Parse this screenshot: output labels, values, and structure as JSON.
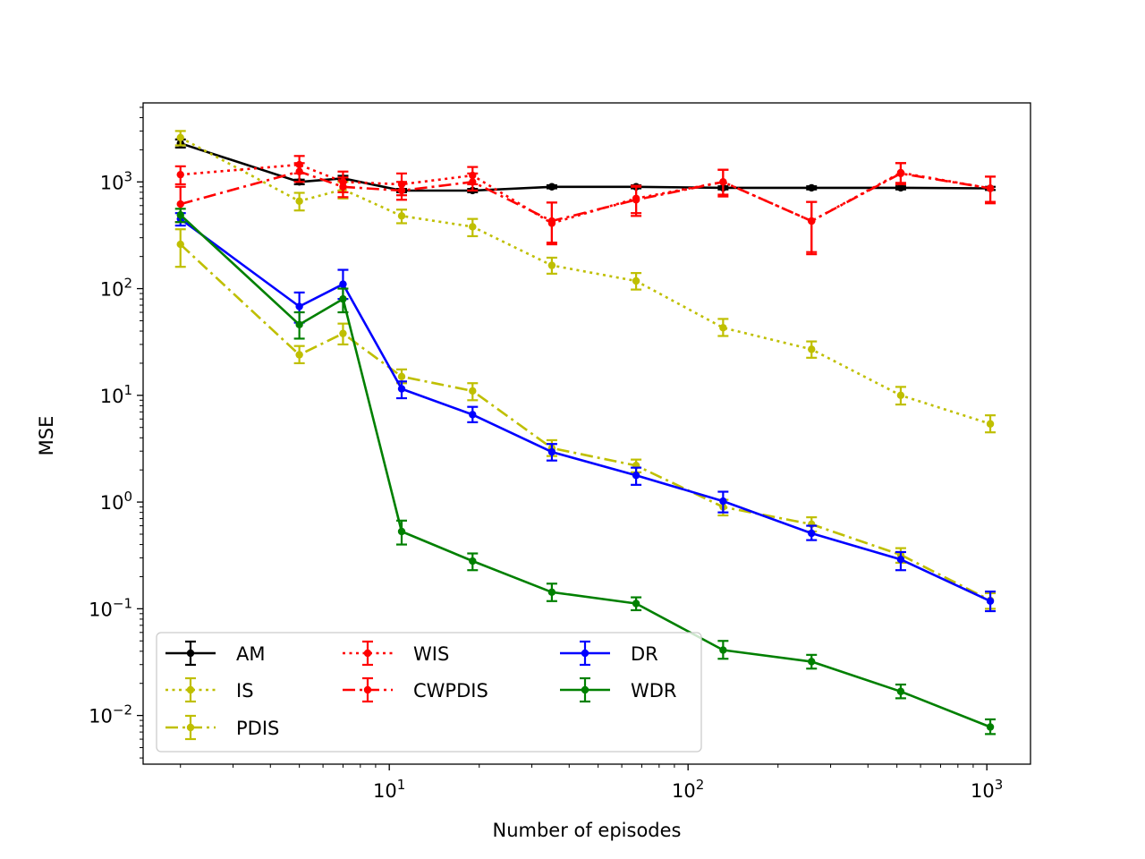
{
  "chart_data": {
    "type": "line",
    "title": "",
    "xlabel": "Number of episodes",
    "ylabel": "MSE",
    "xscale": "log",
    "yscale": "log",
    "xlim": [
      1.5,
      1400
    ],
    "ylim": [
      0.0035,
      5500
    ],
    "x_ticks": [
      {
        "value": 10,
        "base": "10",
        "exp": "1"
      },
      {
        "value": 100,
        "base": "10",
        "exp": "2"
      },
      {
        "value": 1000,
        "base": "10",
        "exp": "3"
      }
    ],
    "y_ticks": [
      {
        "value": 0.01,
        "base": "10",
        "exp": "−2"
      },
      {
        "value": 0.1,
        "base": "10",
        "exp": "−1"
      },
      {
        "value": 1,
        "base": "10",
        "exp": "0"
      },
      {
        "value": 10,
        "base": "10",
        "exp": "1"
      },
      {
        "value": 100,
        "base": "10",
        "exp": "2"
      },
      {
        "value": 1000,
        "base": "10",
        "exp": "3"
      }
    ],
    "grid": false,
    "legend_placement": "lower-left",
    "legend_columns": 3,
    "x": [
      2,
      5,
      7,
      11,
      19,
      35,
      67,
      131,
      259,
      515,
      1027
    ],
    "series": [
      {
        "name": "AM",
        "color": "#000000",
        "dash": "solid",
        "values": [
          2300,
          1000,
          1080,
          830,
          830,
          900,
          900,
          880,
          880,
          880,
          870
        ],
        "err_low": [
          2100,
          950,
          1020,
          800,
          800,
          870,
          870,
          850,
          850,
          850,
          840
        ],
        "err_high": [
          2500,
          1050,
          1140,
          860,
          860,
          930,
          930,
          910,
          910,
          910,
          900
        ]
      },
      {
        "name": "IS",
        "color": "#bfbf00",
        "dash": "dotted",
        "values": [
          2600,
          660,
          850,
          480,
          380,
          165,
          118,
          43,
          27,
          10,
          5.4
        ],
        "err_low": [
          2200,
          540,
          700,
          410,
          310,
          138,
          98,
          36,
          22.5,
          8.2,
          4.5
        ],
        "err_high": [
          3000,
          790,
          1000,
          550,
          450,
          195,
          140,
          52,
          32,
          12,
          6.5
        ]
      },
      {
        "name": "PDIS",
        "color": "#bfbf00",
        "dash": "dashdot",
        "values": [
          260,
          24,
          38,
          15,
          11,
          3.2,
          2.2,
          0.9,
          0.62,
          0.32,
          0.12
        ],
        "err_low": [
          160,
          20,
          30,
          13,
          9,
          2.7,
          1.9,
          0.75,
          0.53,
          0.27,
          0.1
        ],
        "err_high": [
          360,
          29,
          47,
          17.5,
          13,
          3.8,
          2.5,
          1.05,
          0.72,
          0.37,
          0.14
        ]
      },
      {
        "name": "WIS",
        "color": "#ff0000",
        "dash": "dotted",
        "values": [
          1170,
          1450,
          1000,
          950,
          1150,
          410,
          700,
          1000,
          430,
          1220,
          870
        ],
        "err_low": [
          950,
          1200,
          800,
          750,
          950,
          270,
          510,
          760,
          220,
          980,
          650
        ],
        "err_high": [
          1400,
          1750,
          1250,
          1200,
          1380,
          640,
          920,
          1300,
          650,
          1500,
          1120
        ]
      },
      {
        "name": "CWPDIS",
        "color": "#ff0000",
        "dash": "dashdot",
        "values": [
          620,
          1250,
          900,
          830,
          1000,
          430,
          680,
          1000,
          430,
          1200,
          870
        ],
        "err_low": [
          420,
          1000,
          720,
          680,
          830,
          260,
          480,
          730,
          210,
          950,
          630
        ],
        "err_high": [
          900,
          1500,
          1100,
          1000,
          1200,
          640,
          900,
          1300,
          650,
          1500,
          1120
        ]
      },
      {
        "name": "DR",
        "color": "#0000ff",
        "dash": "solid",
        "values": [
          450,
          68,
          110,
          11.5,
          6.6,
          2.95,
          1.78,
          1.02,
          0.51,
          0.29,
          0.118
        ],
        "err_low": [
          390,
          48,
          80,
          9.4,
          5.6,
          2.45,
          1.45,
          0.8,
          0.44,
          0.23,
          0.095
        ],
        "err_high": [
          510,
          92,
          150,
          13.5,
          7.8,
          3.5,
          2.1,
          1.25,
          0.6,
          0.34,
          0.145
        ]
      },
      {
        "name": "WDR",
        "color": "#008000",
        "dash": "solid",
        "values": [
          490,
          46,
          80,
          0.53,
          0.28,
          0.143,
          0.112,
          0.041,
          0.032,
          0.0168,
          0.0078
        ],
        "err_low": [
          420,
          34,
          60,
          0.4,
          0.23,
          0.118,
          0.097,
          0.034,
          0.0275,
          0.0145,
          0.0067
        ],
        "err_high": [
          560,
          60,
          100,
          0.67,
          0.33,
          0.172,
          0.128,
          0.05,
          0.037,
          0.0195,
          0.0092
        ]
      }
    ]
  }
}
